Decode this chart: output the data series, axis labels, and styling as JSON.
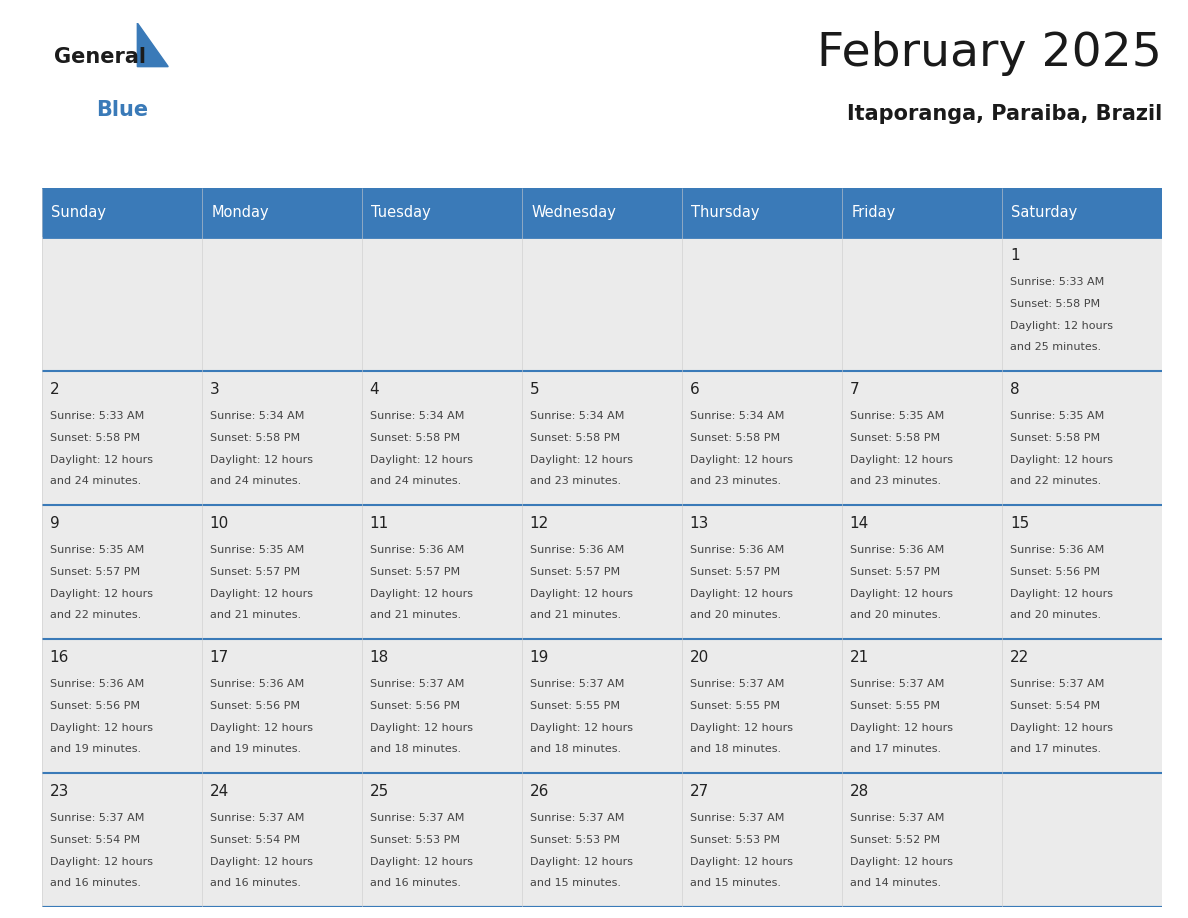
{
  "title": "February 2025",
  "subtitle": "Itaporanga, Paraiba, Brazil",
  "header_color": "#3a7ab8",
  "header_text_color": "#ffffff",
  "days_of_week": [
    "Sunday",
    "Monday",
    "Tuesday",
    "Wednesday",
    "Thursday",
    "Friday",
    "Saturday"
  ],
  "background_color": "#ffffff",
  "cell_bg": "#ebebeb",
  "grid_line_color": "#3a7ab8",
  "text_color": "#444444",
  "day_num_color": "#222222",
  "calendar": [
    [
      null,
      null,
      null,
      null,
      null,
      null,
      {
        "day": 1,
        "sunrise": "5:33 AM",
        "sunset": "5:58 PM",
        "daylight_suffix": "25 minutes."
      }
    ],
    [
      {
        "day": 2,
        "sunrise": "5:33 AM",
        "sunset": "5:58 PM",
        "daylight_suffix": "24 minutes."
      },
      {
        "day": 3,
        "sunrise": "5:34 AM",
        "sunset": "5:58 PM",
        "daylight_suffix": "24 minutes."
      },
      {
        "day": 4,
        "sunrise": "5:34 AM",
        "sunset": "5:58 PM",
        "daylight_suffix": "24 minutes."
      },
      {
        "day": 5,
        "sunrise": "5:34 AM",
        "sunset": "5:58 PM",
        "daylight_suffix": "23 minutes."
      },
      {
        "day": 6,
        "sunrise": "5:34 AM",
        "sunset": "5:58 PM",
        "daylight_suffix": "23 minutes."
      },
      {
        "day": 7,
        "sunrise": "5:35 AM",
        "sunset": "5:58 PM",
        "daylight_suffix": "23 minutes."
      },
      {
        "day": 8,
        "sunrise": "5:35 AM",
        "sunset": "5:58 PM",
        "daylight_suffix": "22 minutes."
      }
    ],
    [
      {
        "day": 9,
        "sunrise": "5:35 AM",
        "sunset": "5:57 PM",
        "daylight_suffix": "22 minutes."
      },
      {
        "day": 10,
        "sunrise": "5:35 AM",
        "sunset": "5:57 PM",
        "daylight_suffix": "21 minutes."
      },
      {
        "day": 11,
        "sunrise": "5:36 AM",
        "sunset": "5:57 PM",
        "daylight_suffix": "21 minutes."
      },
      {
        "day": 12,
        "sunrise": "5:36 AM",
        "sunset": "5:57 PM",
        "daylight_suffix": "21 minutes."
      },
      {
        "day": 13,
        "sunrise": "5:36 AM",
        "sunset": "5:57 PM",
        "daylight_suffix": "20 minutes."
      },
      {
        "day": 14,
        "sunrise": "5:36 AM",
        "sunset": "5:57 PM",
        "daylight_suffix": "20 minutes."
      },
      {
        "day": 15,
        "sunrise": "5:36 AM",
        "sunset": "5:56 PM",
        "daylight_suffix": "20 minutes."
      }
    ],
    [
      {
        "day": 16,
        "sunrise": "5:36 AM",
        "sunset": "5:56 PM",
        "daylight_suffix": "19 minutes."
      },
      {
        "day": 17,
        "sunrise": "5:36 AM",
        "sunset": "5:56 PM",
        "daylight_suffix": "19 minutes."
      },
      {
        "day": 18,
        "sunrise": "5:37 AM",
        "sunset": "5:56 PM",
        "daylight_suffix": "18 minutes."
      },
      {
        "day": 19,
        "sunrise": "5:37 AM",
        "sunset": "5:55 PM",
        "daylight_suffix": "18 minutes."
      },
      {
        "day": 20,
        "sunrise": "5:37 AM",
        "sunset": "5:55 PM",
        "daylight_suffix": "18 minutes."
      },
      {
        "day": 21,
        "sunrise": "5:37 AM",
        "sunset": "5:55 PM",
        "daylight_suffix": "17 minutes."
      },
      {
        "day": 22,
        "sunrise": "5:37 AM",
        "sunset": "5:54 PM",
        "daylight_suffix": "17 minutes."
      }
    ],
    [
      {
        "day": 23,
        "sunrise": "5:37 AM",
        "sunset": "5:54 PM",
        "daylight_suffix": "16 minutes."
      },
      {
        "day": 24,
        "sunrise": "5:37 AM",
        "sunset": "5:54 PM",
        "daylight_suffix": "16 minutes."
      },
      {
        "day": 25,
        "sunrise": "5:37 AM",
        "sunset": "5:53 PM",
        "daylight_suffix": "16 minutes."
      },
      {
        "day": 26,
        "sunrise": "5:37 AM",
        "sunset": "5:53 PM",
        "daylight_suffix": "15 minutes."
      },
      {
        "day": 27,
        "sunrise": "5:37 AM",
        "sunset": "5:53 PM",
        "daylight_suffix": "15 minutes."
      },
      {
        "day": 28,
        "sunrise": "5:37 AM",
        "sunset": "5:52 PM",
        "daylight_suffix": "14 minutes."
      },
      null
    ]
  ]
}
